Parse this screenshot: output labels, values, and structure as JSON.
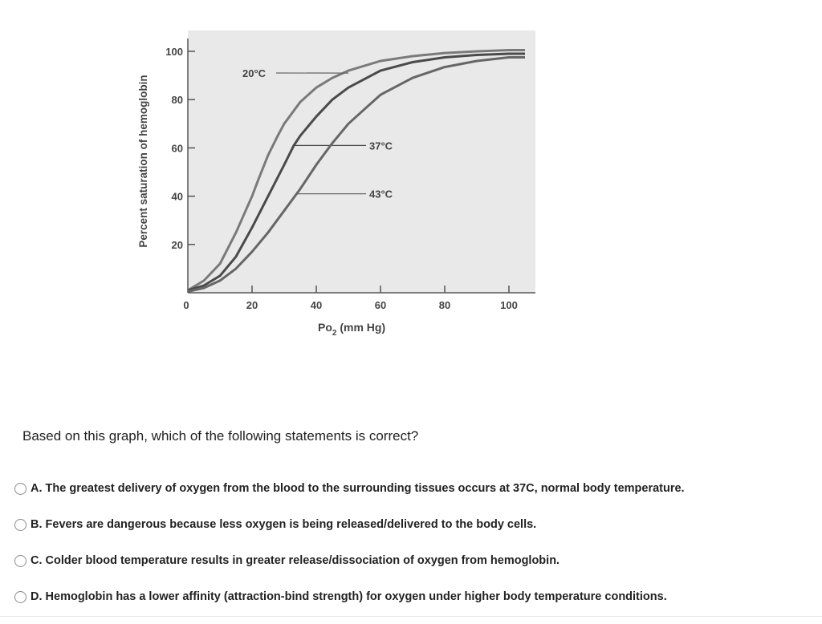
{
  "chart_data": {
    "type": "line",
    "xlabel": "Po₂ (mm Hg)",
    "xlabel_main": "Po",
    "xlabel_sub": "2",
    "xlabel_unit": " (mm Hg)",
    "ylabel": "Percent saturation of hemoglobin",
    "xlim": [
      0,
      105
    ],
    "ylim": [
      0,
      100
    ],
    "xticks": [
      0,
      20,
      40,
      60,
      80,
      100
    ],
    "yticks": [
      20,
      40,
      60,
      80,
      100
    ],
    "grid": false,
    "background": "#e9e9e9",
    "series": [
      {
        "name": "20°C",
        "color": "#7a7a7a",
        "label_point": [
          50,
          91
        ],
        "x": [
          0,
          5,
          10,
          15,
          18,
          20,
          22,
          25,
          28,
          30,
          35,
          40,
          45,
          50,
          60,
          70,
          80,
          90,
          100,
          105
        ],
        "y": [
          1,
          5,
          12,
          25,
          34,
          40,
          47,
          57,
          65,
          70,
          79,
          85,
          89,
          92,
          96,
          98,
          99.3,
          100,
          100.5,
          100.5
        ]
      },
      {
        "name": "37°C",
        "color": "#4a4a4a",
        "label_point": [
          33,
          61
        ],
        "x": [
          0,
          5,
          10,
          15,
          20,
          25,
          30,
          33,
          35,
          40,
          45,
          50,
          60,
          70,
          80,
          90,
          100,
          105
        ],
        "y": [
          1,
          3,
          7,
          15,
          27,
          40,
          53,
          61,
          65,
          73,
          80,
          85,
          92,
          95.5,
          97.5,
          98.5,
          99,
          99
        ]
      },
      {
        "name": "43°C",
        "color": "#666666",
        "label_point": [
          34,
          41
        ],
        "x": [
          0,
          5,
          10,
          15,
          20,
          25,
          30,
          35,
          40,
          45,
          50,
          55,
          60,
          70,
          80,
          90,
          100,
          105
        ],
        "y": [
          0.5,
          2,
          5,
          10,
          17,
          25,
          34,
          43,
          53,
          62,
          70,
          76,
          82,
          89,
          93.5,
          96,
          97.5,
          97.5
        ]
      }
    ]
  },
  "question": {
    "text": "Based on this graph, which of the following statements is correct?"
  },
  "options": [
    {
      "label": "A. The greatest delivery of oxygen from the blood to the surrounding tissues occurs at 37C, normal body temperature."
    },
    {
      "label": "B. Fevers are dangerous because less oxygen is being released/delivered to the body cells."
    },
    {
      "label": "C. Colder blood temperature results in greater release/dissociation of oxygen from hemoglobin."
    },
    {
      "label": "D. Hemoglobin has a lower affinity (attraction-bind strength) for oxygen under higher body temperature conditions."
    }
  ]
}
